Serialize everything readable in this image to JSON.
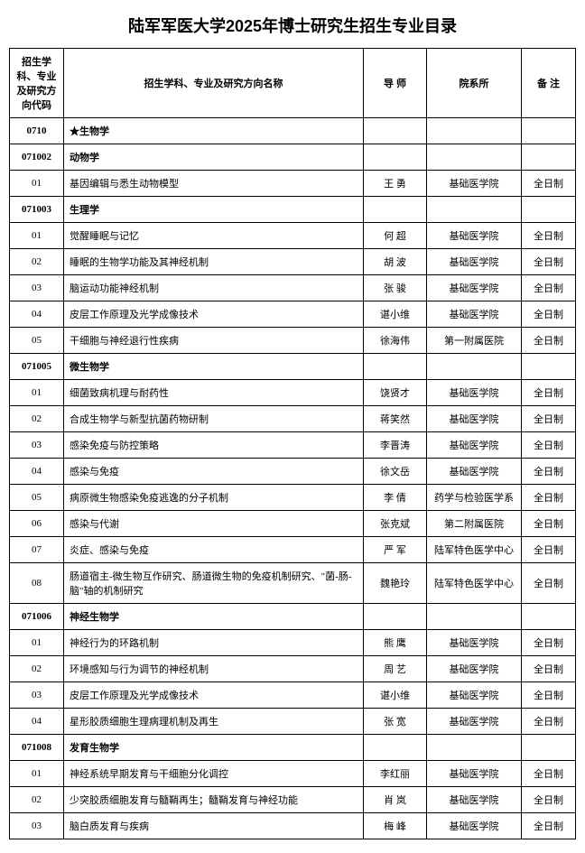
{
  "title": "陆军军医大学2025年博士研究生招生专业目录",
  "columns": {
    "code": "招生学科、专业及研究方向代码",
    "name": "招生学科、专业及研究方向名称",
    "advisor": "导 师",
    "dept": "院系所",
    "note": "备 注"
  },
  "rows": [
    {
      "type": "header",
      "code": "0710",
      "name": "★生物学",
      "advisor": "",
      "dept": "",
      "note": ""
    },
    {
      "type": "header",
      "code": "071002",
      "name": "动物学",
      "advisor": "",
      "dept": "",
      "note": ""
    },
    {
      "type": "item",
      "code": "01",
      "name": "基因编辑与悉生动物模型",
      "advisor": "王 勇",
      "dept": "基础医学院",
      "note": "全日制"
    },
    {
      "type": "header",
      "code": "071003",
      "name": "生理学",
      "advisor": "",
      "dept": "",
      "note": ""
    },
    {
      "type": "item",
      "code": "01",
      "name": "觉醒睡眠与记忆",
      "advisor": "何 超",
      "dept": "基础医学院",
      "note": "全日制"
    },
    {
      "type": "item",
      "code": "02",
      "name": "睡眠的生物学功能及其神经机制",
      "advisor": "胡 波",
      "dept": "基础医学院",
      "note": "全日制"
    },
    {
      "type": "item",
      "code": "03",
      "name": "脑运动功能神经机制",
      "advisor": "张 骏",
      "dept": "基础医学院",
      "note": "全日制"
    },
    {
      "type": "item",
      "code": "04",
      "name": "皮层工作原理及光学成像技术",
      "advisor": "谌小维",
      "dept": "基础医学院",
      "note": "全日制"
    },
    {
      "type": "item",
      "code": "05",
      "name": "干细胞与神经退行性疾病",
      "advisor": "徐海伟",
      "dept": "第一附属医院",
      "note": "全日制"
    },
    {
      "type": "header",
      "code": "071005",
      "name": "微生物学",
      "advisor": "",
      "dept": "",
      "note": ""
    },
    {
      "type": "item",
      "code": "01",
      "name": "细菌致病机理与耐药性",
      "advisor": "饶贤才",
      "dept": "基础医学院",
      "note": "全日制"
    },
    {
      "type": "item",
      "code": "02",
      "name": "合成生物学与新型抗菌药物研制",
      "advisor": "蒋笑然",
      "dept": "基础医学院",
      "note": "全日制"
    },
    {
      "type": "item",
      "code": "03",
      "name": "感染免疫与防控策略",
      "advisor": "李晋涛",
      "dept": "基础医学院",
      "note": "全日制"
    },
    {
      "type": "item",
      "code": "04",
      "name": "感染与免疫",
      "advisor": "徐文岳",
      "dept": "基础医学院",
      "note": "全日制"
    },
    {
      "type": "item",
      "code": "05",
      "name": "病原微生物感染免疫逃逸的分子机制",
      "advisor": "李 倩",
      "dept": "药学与检验医学系",
      "note": "全日制"
    },
    {
      "type": "item",
      "code": "06",
      "name": "感染与代谢",
      "advisor": "张克斌",
      "dept": "第二附属医院",
      "note": "全日制"
    },
    {
      "type": "item",
      "code": "07",
      "name": "炎症、感染与免疫",
      "advisor": "严 军",
      "dept": "陆军特色医学中心",
      "note": "全日制"
    },
    {
      "type": "item",
      "code": "08",
      "name": "肠道宿主-微生物互作研究、肠道微生物的免疫机制研究、\"菌-肠-脑\"轴的机制研究",
      "advisor": "魏艳玲",
      "dept": "陆军特色医学中心",
      "note": "全日制"
    },
    {
      "type": "header",
      "code": "071006",
      "name": "神经生物学",
      "advisor": "",
      "dept": "",
      "note": ""
    },
    {
      "type": "item",
      "code": "01",
      "name": "神经行为的环路机制",
      "advisor": "熊 鹰",
      "dept": "基础医学院",
      "note": "全日制"
    },
    {
      "type": "item",
      "code": "02",
      "name": "环境感知与行为调节的神经机制",
      "advisor": "周 艺",
      "dept": "基础医学院",
      "note": "全日制"
    },
    {
      "type": "item",
      "code": "03",
      "name": "皮层工作原理及光学成像技术",
      "advisor": "谌小维",
      "dept": "基础医学院",
      "note": "全日制"
    },
    {
      "type": "item",
      "code": "04",
      "name": "星形胶质细胞生理病理机制及再生",
      "advisor": "张 宽",
      "dept": "基础医学院",
      "note": "全日制"
    },
    {
      "type": "header",
      "code": "071008",
      "name": "发育生物学",
      "advisor": "",
      "dept": "",
      "note": ""
    },
    {
      "type": "item",
      "code": "01",
      "name": "神经系统早期发育与干细胞分化调控",
      "advisor": "李红丽",
      "dept": "基础医学院",
      "note": "全日制"
    },
    {
      "type": "item",
      "code": "02",
      "name": "少突胶质细胞发育与髓鞘再生；髓鞘发育与神经功能",
      "advisor": "肖 岚",
      "dept": "基础医学院",
      "note": "全日制"
    },
    {
      "type": "item",
      "code": "03",
      "name": "脑白质发育与疾病",
      "advisor": "梅 峰",
      "dept": "基础医学院",
      "note": "全日制"
    }
  ]
}
